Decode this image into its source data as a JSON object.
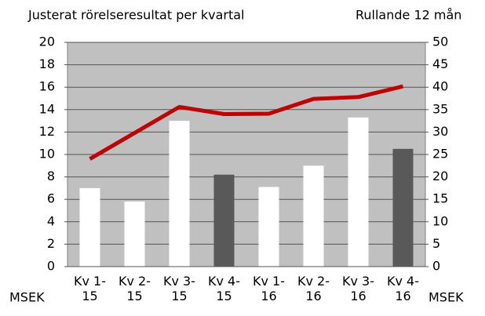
{
  "chart_data": {
    "type": "bar",
    "title": "Justerat rörelseresultat per kvartal",
    "y2_title": "Rullande 12 mån",
    "ylabel": "MSEK",
    "y2label": "MSEK",
    "categories": [
      "Kv 1-15",
      "Kv 2-15",
      "Kv 3-15",
      "Kv 4-15",
      "Kv 1-16",
      "Kv 2-16",
      "Kv 3-16",
      "Kv 4-16"
    ],
    "series": [
      {
        "type": "bar",
        "colors": [
          "#ffffff",
          "#ffffff",
          "#ffffff",
          "#595959",
          "#ffffff",
          "#ffffff",
          "#ffffff",
          "#595959"
        ],
        "values": [
          7.0,
          5.8,
          13.0,
          8.2,
          7.1,
          9.0,
          13.3,
          10.5
        ]
      },
      {
        "type": "line",
        "axis": "y2",
        "color": "#c00000",
        "values": [
          24,
          29.8,
          35.6,
          34,
          34.1,
          37.4,
          37.8,
          40.2
        ]
      }
    ],
    "ylim": [
      0,
      20
    ],
    "yticks": [
      0,
      2,
      4,
      6,
      8,
      10,
      12,
      14,
      16,
      18,
      20
    ],
    "y2lim": [
      0,
      50
    ],
    "y2ticks": [
      0,
      5,
      10,
      15,
      20,
      25,
      30,
      35,
      40,
      45,
      50
    ],
    "grid": true,
    "plot_background": "#c0c0c0"
  }
}
